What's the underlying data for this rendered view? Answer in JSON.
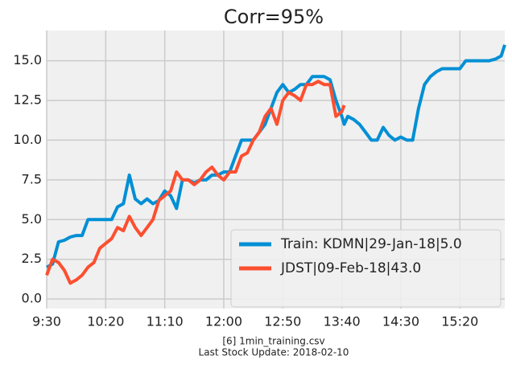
{
  "chart_data": {
    "type": "line",
    "title": "Corr=95%",
    "x": [
      "9:30",
      "9:35",
      "9:40",
      "9:45",
      "9:50",
      "9:55",
      "10:00",
      "10:05",
      "10:10",
      "10:15",
      "10:20",
      "10:25",
      "10:30",
      "10:35",
      "10:40",
      "10:45",
      "10:50",
      "10:55",
      "11:00",
      "11:05",
      "11:10",
      "11:15",
      "11:20",
      "11:25",
      "11:30",
      "11:35",
      "11:40",
      "11:45",
      "11:50",
      "11:55",
      "12:00",
      "12:05",
      "12:10",
      "12:15",
      "12:20",
      "12:25",
      "12:30",
      "12:35",
      "12:40",
      "12:45",
      "12:50",
      "12:55",
      "13:00",
      "13:05",
      "13:10",
      "13:15",
      "13:20",
      "13:25",
      "13:30",
      "13:35",
      "13:40",
      "13:42",
      "13:45",
      "13:50",
      "13:55",
      "14:00",
      "14:05",
      "14:10",
      "14:15",
      "14:20",
      "14:25",
      "14:30",
      "14:35",
      "14:40",
      "14:45",
      "14:50",
      "14:55",
      "15:00",
      "15:05",
      "15:10",
      "15:15",
      "15:20",
      "15:25",
      "15:30",
      "15:35",
      "15:40",
      "15:45",
      "15:50",
      "15:55",
      "15:58"
    ],
    "series": [
      {
        "name": "Train: KDMN|29-Jan-18|5.0",
        "color": "#008fd5",
        "values": [
          2.0,
          2.2,
          3.6,
          3.7,
          3.9,
          4.0,
          4.0,
          5.0,
          5.0,
          5.0,
          5.0,
          5.0,
          5.8,
          6.0,
          7.8,
          6.3,
          6.0,
          6.3,
          6.0,
          6.2,
          6.8,
          6.5,
          5.7,
          7.5,
          7.5,
          7.3,
          7.5,
          7.5,
          7.8,
          7.8,
          8.0,
          8.0,
          9.0,
          10.0,
          10.0,
          10.0,
          10.5,
          11.0,
          12.0,
          13.0,
          13.5,
          13.0,
          13.2,
          13.5,
          13.5,
          14.0,
          14.0,
          14.0,
          13.8,
          12.5,
          11.5,
          11.0,
          11.5,
          11.3,
          11.0,
          10.5,
          10.0,
          10.0,
          10.8,
          10.3,
          10.0,
          10.2,
          10.0,
          10.0,
          12.0,
          13.5,
          14.0,
          14.3,
          14.5,
          14.5,
          14.5,
          14.5,
          15.0,
          15.0,
          15.0,
          15.0,
          15.0,
          15.1,
          15.3,
          16.0
        ]
      },
      {
        "name": "JDST|09-Feb-18|43.0",
        "color": "#fc4f30",
        "values": [
          1.5,
          2.5,
          2.3,
          1.8,
          1.0,
          1.2,
          1.5,
          2.0,
          2.3,
          3.2,
          3.5,
          3.8,
          4.5,
          4.3,
          5.2,
          4.5,
          4.0,
          4.5,
          5.0,
          6.2,
          6.5,
          6.8,
          8.0,
          7.5,
          7.5,
          7.2,
          7.5,
          8.0,
          8.3,
          7.8,
          7.5,
          8.0,
          8.0,
          9.0,
          9.2,
          10.0,
          10.5,
          11.5,
          12.0,
          11.0,
          12.5,
          13.0,
          12.8,
          12.5,
          13.5,
          13.5,
          13.7,
          13.5,
          13.5,
          11.5,
          11.8,
          12.2,
          null,
          null,
          null,
          null,
          null,
          null,
          null,
          null,
          null,
          null,
          null,
          null,
          null,
          null,
          null,
          null,
          null,
          null,
          null,
          null,
          null,
          null,
          null,
          null,
          null,
          null,
          null,
          null
        ]
      }
    ],
    "xlim": [
      "9:30",
      "15:58"
    ],
    "xticks": [
      "9:30",
      "10:20",
      "11:10",
      "12:00",
      "12:50",
      "13:40",
      "14:30",
      "15:20"
    ],
    "ylim": [
      -0.6,
      16.9
    ],
    "yticks": [
      {
        "value": 0,
        "label": "0.0"
      },
      {
        "value": 2.5,
        "label": "2.5"
      },
      {
        "value": 5,
        "label": "5.0"
      },
      {
        "value": 7.5,
        "label": "7.5"
      },
      {
        "value": 10,
        "label": "10.0"
      },
      {
        "value": 12.5,
        "label": "12.5"
      },
      {
        "value": 15,
        "label": "15.0"
      }
    ],
    "grid": true,
    "legend": "lower right"
  },
  "footer": [
    "[6] 1min_training.csv",
    "Last Stock Update: 2018-02-10"
  ]
}
